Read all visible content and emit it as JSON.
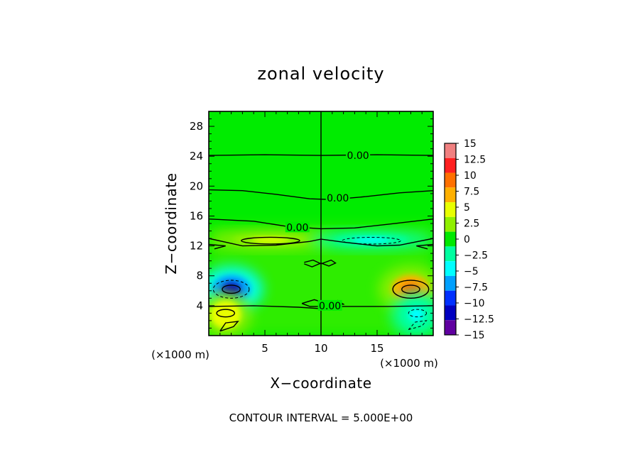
{
  "chart_data": {
    "type": "heatmap",
    "title": "zonal velocity",
    "xlabel": "X−coordinate",
    "ylabel": "Z−coordinate",
    "x_units_left": "(×1000 m)",
    "x_units_right": "(×1000 m)",
    "xlim": [
      0,
      20
    ],
    "ylim": [
      0,
      30
    ],
    "xticks": [
      {
        "v": 5,
        "label": "5"
      },
      {
        "v": 10,
        "label": "10"
      },
      {
        "v": 15,
        "label": "15"
      }
    ],
    "yticks": [
      {
        "v": 4,
        "label": "4"
      },
      {
        "v": 8,
        "label": "8"
      },
      {
        "v": 12,
        "label": "12"
      },
      {
        "v": 16,
        "label": "16"
      },
      {
        "v": 20,
        "label": "20"
      },
      {
        "v": 24,
        "label": "24"
      },
      {
        "v": 28,
        "label": "28"
      }
    ],
    "footer": "CONTOUR INTERVAL = 5.000E+00",
    "colorbar": {
      "min": -15,
      "max": 15,
      "labels": [
        "15",
        "12.5",
        "10",
        "7.5",
        "5",
        "2.5",
        "0",
        "−2.5",
        "−5",
        "−7.5",
        "−10",
        "−12.5",
        "−15"
      ],
      "colors": [
        "#f08080",
        "#ff2020",
        "#ff7000",
        "#ffb000",
        "#e8ff00",
        "#90f000",
        "#00e800",
        "#00ffa0",
        "#00ffff",
        "#00a0ff",
        "#0030ff",
        "#0000c0",
        "#6000a0"
      ]
    },
    "background_value": 0.5,
    "features": [
      {
        "kind": "vortex",
        "x": 2.0,
        "z": 6.2,
        "value": -12.5
      },
      {
        "kind": "vortex",
        "x": 18.0,
        "z": 6.2,
        "value": 10
      },
      {
        "kind": "band",
        "x": 5.5,
        "z": 12.8,
        "value": 5
      },
      {
        "kind": "band",
        "x": 14.5,
        "z": 12.8,
        "value": -4
      },
      {
        "kind": "patch",
        "x": 1.5,
        "z": 2.8,
        "value": 6
      },
      {
        "kind": "patch",
        "x": 18.5,
        "z": 2.8,
        "value": -5
      }
    ],
    "contour_labels": [
      {
        "x": 13.3,
        "z": 24.1,
        "text": "0.00"
      },
      {
        "x": 11.5,
        "z": 18.4,
        "text": "0.00"
      },
      {
        "x": 7.9,
        "z": 14.5,
        "text": "0.00"
      },
      {
        "x": 10.8,
        "z": 4.0,
        "text": "0.00"
      }
    ]
  }
}
